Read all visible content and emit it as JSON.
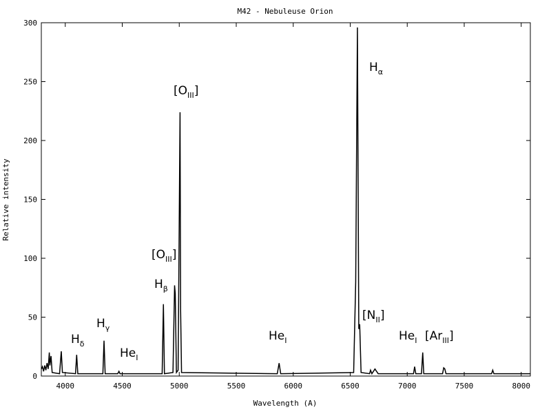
{
  "chart_data": {
    "type": "line",
    "title": "M42 - Nebuleuse Orion",
    "x_label": "Wavelength (A)",
    "y_label": "Relative intensity",
    "x": [
      3790,
      3800,
      3810,
      3820,
      3830,
      3840,
      3850,
      3860,
      3865,
      3875,
      3885,
      3950,
      3965,
      3975,
      4090,
      4100,
      4110,
      4330,
      4340,
      4350,
      4460,
      4471,
      4480,
      4850,
      4861,
      4870,
      4945,
      4959,
      4965,
      4975,
      4990,
      5007,
      5012,
      5020,
      5860,
      5876,
      5890,
      6530,
      6548,
      6563,
      6575,
      6583,
      6595,
      6670,
      6678,
      6690,
      6717,
      6731,
      6745,
      7055,
      7065,
      7075,
      7125,
      7136,
      7145,
      7310,
      7320,
      7330,
      7340,
      7740,
      7750,
      7760,
      8080
    ],
    "values": [
      6,
      8,
      4,
      9,
      5,
      11,
      6,
      20,
      9,
      17,
      3,
      2,
      21,
      3,
      2,
      18,
      2,
      2,
      30,
      2,
      2,
      4,
      2,
      2,
      61,
      2,
      3,
      77,
      70,
      3,
      5,
      224,
      56,
      3,
      2,
      11,
      2,
      3,
      80,
      296,
      40,
      44,
      3,
      2,
      5,
      2,
      6,
      4,
      2,
      2,
      8,
      2,
      2,
      20,
      2,
      2,
      7,
      6,
      2,
      2,
      5,
      2,
      2
    ],
    "color": "#000000",
    "xlim": [
      3790,
      8080
    ],
    "ylim": [
      0,
      300
    ],
    "xticks": [
      4000,
      4500,
      5000,
      5500,
      6000,
      6500,
      7000,
      7500,
      8000
    ],
    "yticks": [
      0,
      50,
      100,
      150,
      200,
      250,
      300
    ],
    "annotations": [
      {
        "text": "H",
        "sub": "δ"
      },
      {
        "text": "H",
        "sub": "γ"
      },
      {
        "text": "He",
        "sub": "I"
      },
      {
        "text": "[O",
        "sub": "III",
        "after": "]"
      },
      {
        "text": "H",
        "sub": "β"
      },
      {
        "text": "[O",
        "sub": "III",
        "after": "]"
      },
      {
        "text": "H",
        "sub": "α"
      },
      {
        "text": "He",
        "sub": "I"
      },
      {
        "text": "[N",
        "sub": "II",
        "after": "]"
      },
      {
        "text": "He",
        "sub": "I"
      },
      {
        "text": "[Ar",
        "sub": "III",
        "after": "]"
      }
    ]
  }
}
